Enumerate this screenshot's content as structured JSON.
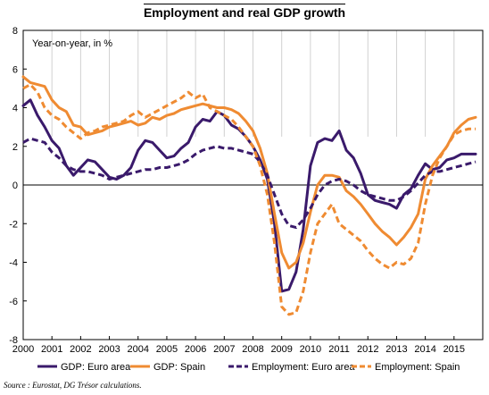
{
  "page": {
    "source": "Source : Eurostat, DG Trésor calculations."
  },
  "chart_data": {
    "type": "line",
    "title": "Employment and real GDP growth",
    "ylabel": "Year-on-year, in %",
    "xlabel": "",
    "xlim": [
      2000,
      2016
    ],
    "ylim": [
      -8,
      8
    ],
    "y_ticks": [
      -8,
      -6,
      -4,
      -2,
      0,
      2,
      4,
      6,
      8
    ],
    "x_ticks": [
      "2000",
      "2001",
      "2002",
      "2003",
      "2004",
      "2005",
      "2006",
      "2007",
      "2008",
      "2009",
      "2010",
      "2011",
      "2012",
      "2013",
      "2014",
      "2015"
    ],
    "grid": "vertical lines at each year, top section",
    "legend_position": "bottom",
    "series": [
      {
        "name": "GDP: Euro area",
        "color": "#3a1a6b",
        "dash": "solid",
        "x": [
          2000.0,
          2000.25,
          2000.5,
          2000.75,
          2001.0,
          2001.25,
          2001.5,
          2001.75,
          2002.0,
          2002.25,
          2002.5,
          2002.75,
          2003.0,
          2003.25,
          2003.5,
          2003.75,
          2004.0,
          2004.25,
          2004.5,
          2004.75,
          2005.0,
          2005.25,
          2005.5,
          2005.75,
          2006.0,
          2006.25,
          2006.5,
          2006.75,
          2007.0,
          2007.25,
          2007.5,
          2007.75,
          2008.0,
          2008.25,
          2008.5,
          2008.75,
          2009.0,
          2009.25,
          2009.5,
          2009.75,
          2010.0,
          2010.25,
          2010.5,
          2010.75,
          2011.0,
          2011.25,
          2011.5,
          2011.75,
          2012.0,
          2012.25,
          2012.5,
          2012.75,
          2013.0,
          2013.25,
          2013.5,
          2013.75,
          2014.0,
          2014.25,
          2014.5,
          2014.75,
          2015.0,
          2015.25,
          2015.5,
          2015.75
        ],
        "values": [
          4.1,
          4.4,
          3.6,
          3.0,
          2.3,
          1.9,
          1.0,
          0.5,
          0.9,
          1.3,
          1.2,
          0.8,
          0.4,
          0.3,
          0.5,
          0.9,
          1.8,
          2.3,
          2.2,
          1.8,
          1.4,
          1.5,
          1.9,
          2.2,
          3.0,
          3.4,
          3.3,
          3.8,
          3.6,
          3.1,
          2.9,
          2.5,
          2.0,
          1.3,
          0.3,
          -2.0,
          -5.5,
          -5.4,
          -4.5,
          -2.3,
          1.0,
          2.2,
          2.4,
          2.3,
          2.8,
          1.8,
          1.4,
          0.6,
          -0.5,
          -0.8,
          -0.9,
          -1.0,
          -1.2,
          -0.5,
          -0.2,
          0.5,
          1.1,
          0.8,
          0.9,
          1.3,
          1.4,
          1.6,
          1.6,
          1.6
        ]
      },
      {
        "name": "GDP: Spain",
        "color": "#ef8b32",
        "dash": "solid",
        "x": [
          2000.0,
          2000.25,
          2000.5,
          2000.75,
          2001.0,
          2001.25,
          2001.5,
          2001.75,
          2002.0,
          2002.25,
          2002.5,
          2002.75,
          2003.0,
          2003.25,
          2003.5,
          2003.75,
          2004.0,
          2004.25,
          2004.5,
          2004.75,
          2005.0,
          2005.25,
          2005.5,
          2005.75,
          2006.0,
          2006.25,
          2006.5,
          2006.75,
          2007.0,
          2007.25,
          2007.5,
          2007.75,
          2008.0,
          2008.25,
          2008.5,
          2008.75,
          2009.0,
          2009.25,
          2009.5,
          2009.75,
          2010.0,
          2010.25,
          2010.5,
          2010.75,
          2011.0,
          2011.25,
          2011.5,
          2011.75,
          2012.0,
          2012.25,
          2012.5,
          2012.75,
          2013.0,
          2013.25,
          2013.5,
          2013.75,
          2014.0,
          2014.25,
          2014.5,
          2014.75,
          2015.0,
          2015.25,
          2015.5,
          2015.75
        ],
        "values": [
          5.6,
          5.3,
          5.2,
          5.1,
          4.4,
          4.0,
          3.8,
          3.1,
          3.0,
          2.6,
          2.7,
          2.8,
          3.0,
          3.1,
          3.2,
          3.3,
          3.1,
          3.2,
          3.5,
          3.4,
          3.6,
          3.7,
          3.9,
          4.0,
          4.1,
          4.2,
          4.1,
          4.0,
          4.0,
          3.9,
          3.7,
          3.3,
          2.8,
          1.9,
          0.6,
          -1.5,
          -3.5,
          -4.3,
          -4.0,
          -3.0,
          -1.4,
          0.0,
          0.5,
          0.5,
          0.4,
          -0.3,
          -0.6,
          -1.0,
          -1.5,
          -2.0,
          -2.4,
          -2.7,
          -3.1,
          -2.7,
          -2.2,
          -1.5,
          0.3,
          1.0,
          1.5,
          2.0,
          2.7,
          3.1,
          3.4,
          3.5
        ]
      },
      {
        "name": "Employment: Euro area",
        "color": "#3a1a6b",
        "dash": "dashed",
        "x": [
          2000.0,
          2000.25,
          2000.5,
          2000.75,
          2001.0,
          2001.25,
          2001.5,
          2001.75,
          2002.0,
          2002.25,
          2002.5,
          2002.75,
          2003.0,
          2003.25,
          2003.5,
          2003.75,
          2004.0,
          2004.25,
          2004.5,
          2004.75,
          2005.0,
          2005.25,
          2005.5,
          2005.75,
          2006.0,
          2006.25,
          2006.5,
          2006.75,
          2007.0,
          2007.25,
          2007.5,
          2007.75,
          2008.0,
          2008.25,
          2008.5,
          2008.75,
          2009.0,
          2009.25,
          2009.5,
          2009.75,
          2010.0,
          2010.25,
          2010.5,
          2010.75,
          2011.0,
          2011.25,
          2011.5,
          2011.75,
          2012.0,
          2012.25,
          2012.5,
          2012.75,
          2013.0,
          2013.25,
          2013.5,
          2013.75,
          2014.0,
          2014.25,
          2014.5,
          2014.75,
          2015.0,
          2015.25,
          2015.5,
          2015.75
        ],
        "values": [
          2.2,
          2.4,
          2.3,
          2.2,
          1.7,
          1.4,
          1.0,
          0.8,
          0.7,
          0.7,
          0.6,
          0.5,
          0.3,
          0.4,
          0.5,
          0.6,
          0.7,
          0.8,
          0.8,
          0.9,
          0.9,
          1.0,
          1.1,
          1.3,
          1.6,
          1.8,
          1.9,
          2.0,
          1.9,
          1.9,
          1.8,
          1.7,
          1.6,
          1.2,
          0.5,
          -0.5,
          -1.5,
          -2.1,
          -2.2,
          -1.8,
          -1.2,
          -0.5,
          0.0,
          0.2,
          0.3,
          0.2,
          0.0,
          -0.3,
          -0.5,
          -0.6,
          -0.7,
          -0.8,
          -0.8,
          -0.6,
          -0.3,
          0.1,
          0.5,
          0.7,
          0.7,
          0.8,
          0.9,
          1.0,
          1.1,
          1.2
        ]
      },
      {
        "name": "Employment: Spain",
        "color": "#ef8b32",
        "dash": "dashed",
        "x": [
          2000.0,
          2000.25,
          2000.5,
          2000.75,
          2001.0,
          2001.25,
          2001.5,
          2001.75,
          2002.0,
          2002.25,
          2002.5,
          2002.75,
          2003.0,
          2003.25,
          2003.5,
          2003.75,
          2004.0,
          2004.25,
          2004.5,
          2004.75,
          2005.0,
          2005.25,
          2005.5,
          2005.75,
          2006.0,
          2006.25,
          2006.5,
          2006.75,
          2007.0,
          2007.25,
          2007.5,
          2007.75,
          2008.0,
          2008.25,
          2008.5,
          2008.75,
          2009.0,
          2009.25,
          2009.5,
          2009.75,
          2010.0,
          2010.25,
          2010.5,
          2010.75,
          2011.0,
          2011.25,
          2011.5,
          2011.75,
          2012.0,
          2012.25,
          2012.5,
          2012.75,
          2013.0,
          2013.25,
          2013.5,
          2013.75,
          2014.0,
          2014.25,
          2014.5,
          2014.75,
          2015.0,
          2015.25,
          2015.5,
          2015.75
        ],
        "values": [
          5.0,
          5.2,
          4.8,
          4.0,
          3.6,
          3.4,
          3.0,
          2.7,
          2.4,
          2.7,
          2.8,
          3.0,
          3.1,
          3.2,
          3.3,
          3.6,
          3.8,
          3.5,
          3.7,
          3.9,
          4.1,
          4.3,
          4.5,
          4.8,
          4.5,
          4.7,
          4.0,
          3.8,
          3.6,
          3.4,
          3.0,
          2.5,
          2.0,
          1.0,
          -0.5,
          -3.0,
          -6.3,
          -6.7,
          -6.6,
          -5.5,
          -3.5,
          -2.0,
          -1.5,
          -1.0,
          -2.0,
          -2.3,
          -2.6,
          -2.9,
          -3.4,
          -3.8,
          -4.1,
          -4.3,
          -4.0,
          -4.1,
          -3.8,
          -3.0,
          -1.0,
          0.5,
          1.4,
          2.0,
          2.6,
          2.8,
          2.9,
          2.9
        ]
      }
    ]
  }
}
